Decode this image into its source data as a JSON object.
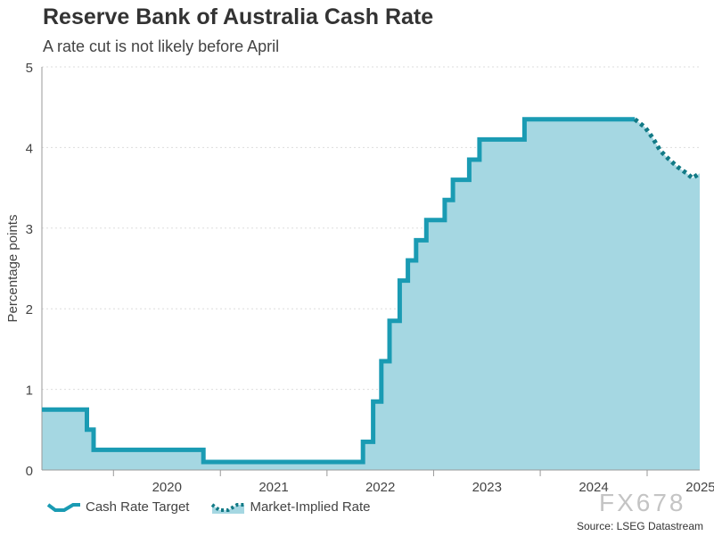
{
  "chart_data": {
    "type": "area",
    "title": "Reserve Bank of Australia Cash Rate",
    "subtitle": "A rate cut is not likely before April",
    "xlabel": "",
    "ylabel": "Percentage points",
    "ylim": [
      0,
      5
    ],
    "yticks": [
      "0",
      "1",
      "2",
      "3",
      "4",
      "5"
    ],
    "xlim": [
      "2019-05-01",
      "2025-06-30"
    ],
    "xticks": [
      {
        "label": "2020",
        "at": "2020-01-01"
      },
      {
        "label": "2021",
        "at": "2021-01-01"
      },
      {
        "label": "2022",
        "at": "2022-01-01"
      },
      {
        "label": "2023",
        "at": "2023-01-01"
      },
      {
        "label": "2024",
        "at": "2024-01-01"
      },
      {
        "label": "2025",
        "at": "2025-01-01"
      }
    ],
    "grid": "horizontal dotted",
    "legend_position": "bottom-left",
    "colors": {
      "line": "#1a9bb3",
      "fill": "#a5d7e2",
      "implied": "#127a86"
    },
    "series": [
      {
        "name": "Cash Rate Target",
        "style": "solid step",
        "points": [
          [
            "2019-05-01",
            0.75
          ],
          [
            "2019-10-02",
            0.75
          ],
          [
            "2019-10-02",
            0.5
          ],
          [
            "2019-10-25",
            0.5
          ],
          [
            "2019-10-25",
            0.25
          ],
          [
            "2020-11-04",
            0.25
          ],
          [
            "2020-11-04",
            0.1
          ],
          [
            "2022-05-04",
            0.1
          ],
          [
            "2022-05-04",
            0.35
          ],
          [
            "2022-06-08",
            0.35
          ],
          [
            "2022-06-08",
            0.85
          ],
          [
            "2022-07-06",
            0.85
          ],
          [
            "2022-07-06",
            1.35
          ],
          [
            "2022-08-03",
            1.35
          ],
          [
            "2022-08-03",
            1.85
          ],
          [
            "2022-09-07",
            1.85
          ],
          [
            "2022-09-07",
            2.35
          ],
          [
            "2022-10-05",
            2.35
          ],
          [
            "2022-10-05",
            2.6
          ],
          [
            "2022-11-02",
            2.6
          ],
          [
            "2022-11-02",
            2.85
          ],
          [
            "2022-12-07",
            2.85
          ],
          [
            "2022-12-07",
            3.1
          ],
          [
            "2023-02-08",
            3.1
          ],
          [
            "2023-02-08",
            3.35
          ],
          [
            "2023-03-08",
            3.35
          ],
          [
            "2023-03-08",
            3.6
          ],
          [
            "2023-05-03",
            3.6
          ],
          [
            "2023-05-03",
            3.85
          ],
          [
            "2023-06-07",
            3.85
          ],
          [
            "2023-06-07",
            4.1
          ],
          [
            "2023-11-08",
            4.1
          ],
          [
            "2023-11-08",
            4.35
          ],
          [
            "2024-11-20",
            4.35
          ]
        ]
      },
      {
        "name": "Market-Implied Rate",
        "style": "dotted",
        "points": [
          [
            "2024-11-20",
            4.35
          ],
          [
            "2024-12-25",
            4.25
          ],
          [
            "2025-01-20",
            4.12
          ],
          [
            "2025-02-15",
            3.96
          ],
          [
            "2025-03-15",
            3.86
          ],
          [
            "2025-04-15",
            3.76
          ],
          [
            "2025-05-20",
            3.67
          ],
          [
            "2025-06-05",
            3.62
          ],
          [
            "2025-06-30",
            3.68
          ]
        ]
      }
    ],
    "source": "Source: LSEG Datastream"
  },
  "watermark": "FX678"
}
